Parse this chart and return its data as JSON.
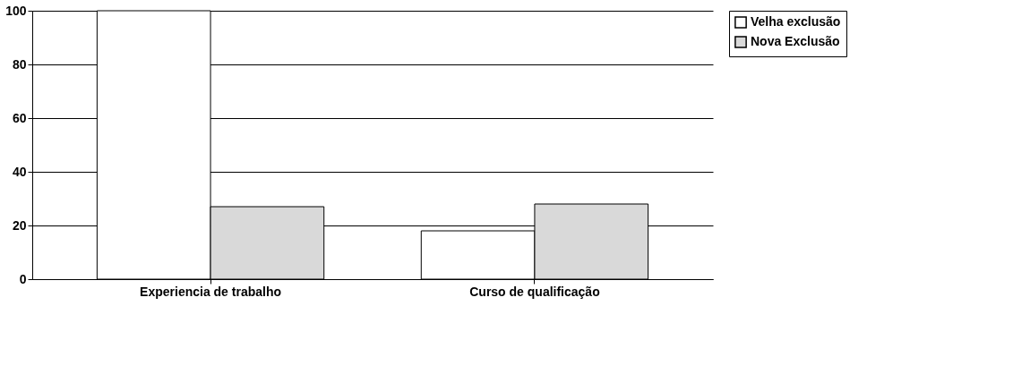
{
  "chart_data": {
    "type": "bar",
    "categories": [
      "Experiencia de trabalho",
      "Curso de qualificação"
    ],
    "series": [
      {
        "name": "Velha exclusão",
        "color": "#ffffff",
        "values": [
          100,
          18
        ]
      },
      {
        "name": "Nova Exclusão",
        "color": "#d9d9d9",
        "values": [
          27,
          28
        ]
      }
    ],
    "ylim": [
      0,
      100
    ],
    "yticks": [
      0,
      20,
      40,
      60,
      80,
      100
    ],
    "grid": "y",
    "legend": "right"
  }
}
